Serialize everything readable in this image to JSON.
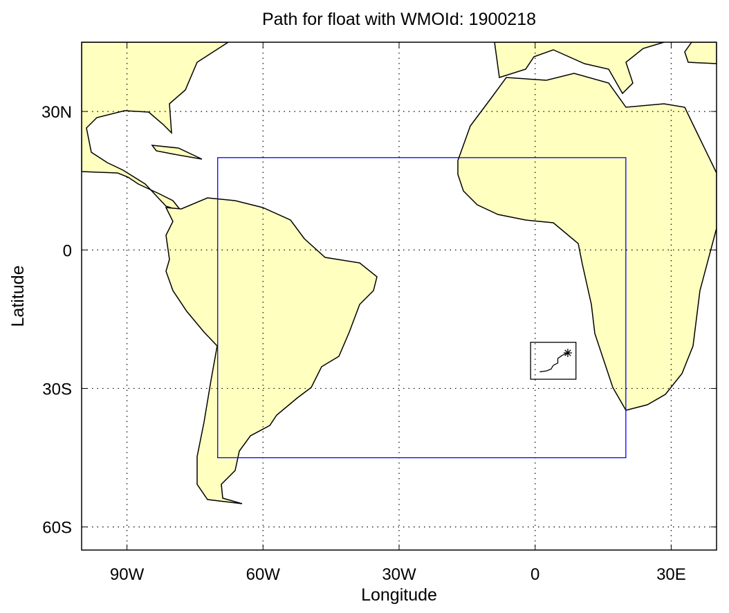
{
  "chart_data": {
    "type": "map",
    "title": "Path for float with WMOId: 1900218",
    "xlabel": "Longitude",
    "ylabel": "Latitude",
    "xlim": [
      -100,
      40
    ],
    "ylim": [
      -65,
      45
    ],
    "xticks": [
      {
        "value": -90,
        "label": "90W"
      },
      {
        "value": -60,
        "label": "60W"
      },
      {
        "value": -30,
        "label": "30W"
      },
      0,
      {
        "value": 30,
        "label": "30E"
      }
    ],
    "yticks": [
      {
        "value": 30,
        "label": "30N"
      },
      0,
      {
        "value": -30,
        "label": "30S"
      },
      {
        "value": -60,
        "label": "60S"
      }
    ],
    "grid": true,
    "land_color": "#ffffc0",
    "region": {
      "lon": [
        -70,
        20
      ],
      "lat": [
        -45,
        20
      ],
      "color": "#0000ff"
    },
    "inset": {
      "lon": [
        -1,
        9
      ],
      "lat": [
        -28,
        -20
      ],
      "color": "#000000"
    },
    "series": [
      {
        "color": "#000000",
        "x": [
          1,
          2.5,
          3.5,
          4,
          5,
          5,
          6,
          7.2
        ],
        "values": [
          -26.4,
          -26.2,
          -25.8,
          -25,
          -24.5,
          -23.5,
          -22.8,
          -22.3
        ]
      }
    ]
  }
}
